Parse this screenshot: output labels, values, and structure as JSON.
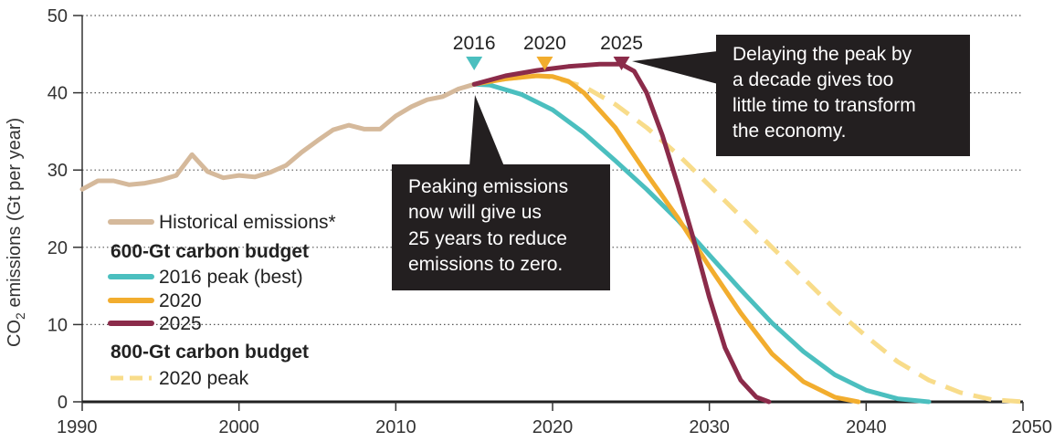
{
  "chart_data": {
    "type": "line",
    "ylabel_prefix": "CO",
    "ylabel_sub": "2",
    "ylabel_suffix": " emissions (Gt per year)",
    "xlim": [
      1990,
      2050
    ],
    "ylim": [
      0,
      50
    ],
    "xticks": [
      1990,
      2000,
      2010,
      2020,
      2030,
      2040,
      2050
    ],
    "yticks": [
      0,
      10,
      20,
      30,
      40,
      50
    ],
    "grid": "horizontal dotted",
    "legend": {
      "placement": "left-bottom",
      "historical": "Historical emissions*",
      "budget600": "600-Gt carbon budget",
      "p2016": "2016 peak (best)",
      "p2020": "2020",
      "p2025": "2025",
      "budget800": "800-Gt carbon budget",
      "p800": "2020 peak"
    },
    "peak_labels": [
      {
        "label": "2016",
        "year": 2015.0,
        "color": "#4bbfbf"
      },
      {
        "label": "2020",
        "year": 2019.5,
        "color": "#f2ad2e"
      },
      {
        "label": "2025",
        "year": 2024.4,
        "color": "#8b2b4a"
      }
    ],
    "annotations": {
      "left": [
        "Peaking emissions",
        "now will give us",
        "25 years to reduce",
        "emissions to zero."
      ],
      "right": [
        "Delaying the peak by",
        "a decade gives too",
        "little time to transform",
        "the economy."
      ]
    },
    "series": [
      {
        "name": "Historical emissions*",
        "color": "#d5b99b",
        "style": "solid",
        "points": [
          [
            1990,
            27.5
          ],
          [
            1991,
            28.6
          ],
          [
            1992,
            28.6
          ],
          [
            1993,
            28.1
          ],
          [
            1994,
            28.3
          ],
          [
            1995,
            28.7
          ],
          [
            1996,
            29.3
          ],
          [
            1997,
            32.0
          ],
          [
            1998,
            29.8
          ],
          [
            1999,
            29.0
          ],
          [
            2000,
            29.3
          ],
          [
            2001,
            29.1
          ],
          [
            2002,
            29.7
          ],
          [
            2003,
            30.6
          ],
          [
            2004,
            32.3
          ],
          [
            2005,
            33.8
          ],
          [
            2006,
            35.2
          ],
          [
            2007,
            35.8
          ],
          [
            2008,
            35.3
          ],
          [
            2009,
            35.3
          ],
          [
            2010,
            37.0
          ],
          [
            2011,
            38.2
          ],
          [
            2012,
            39.1
          ],
          [
            2013,
            39.5
          ],
          [
            2014,
            40.5
          ],
          [
            2015,
            41.1
          ]
        ]
      },
      {
        "name": "2016 peak (best)",
        "color": "#4bbfbf",
        "style": "solid",
        "points": [
          [
            2015,
            41.1
          ],
          [
            2016,
            41.0
          ],
          [
            2018,
            39.8
          ],
          [
            2020,
            37.8
          ],
          [
            2022,
            34.8
          ],
          [
            2024,
            31.2
          ],
          [
            2026,
            27.5
          ],
          [
            2028,
            23.5
          ],
          [
            2030,
            19.0
          ],
          [
            2032,
            14.5
          ],
          [
            2034,
            10.2
          ],
          [
            2036,
            6.5
          ],
          [
            2038,
            3.5
          ],
          [
            2040,
            1.5
          ],
          [
            2042,
            0.4
          ],
          [
            2044,
            0.0
          ]
        ]
      },
      {
        "name": "2020",
        "color": "#f2ad2e",
        "style": "solid",
        "points": [
          [
            2015,
            41.1
          ],
          [
            2017,
            41.8
          ],
          [
            2019,
            42.2
          ],
          [
            2020,
            42.1
          ],
          [
            2021,
            41.5
          ],
          [
            2022,
            40.0
          ],
          [
            2024,
            35.5
          ],
          [
            2026,
            29.5
          ],
          [
            2028,
            23.8
          ],
          [
            2030,
            17.5
          ],
          [
            2032,
            11.5
          ],
          [
            2034,
            6.2
          ],
          [
            2036,
            2.6
          ],
          [
            2038,
            0.6
          ],
          [
            2039.5,
            0.0
          ]
        ]
      },
      {
        "name": "2025",
        "color": "#8b2b4a",
        "style": "solid",
        "points": [
          [
            2015,
            41.1
          ],
          [
            2017,
            42.2
          ],
          [
            2019,
            42.9
          ],
          [
            2021,
            43.4
          ],
          [
            2023,
            43.7
          ],
          [
            2024.4,
            43.7
          ],
          [
            2025.2,
            42.8
          ],
          [
            2026,
            40.0
          ],
          [
            2027,
            34.5
          ],
          [
            2028,
            28.0
          ],
          [
            2029,
            21.0
          ],
          [
            2030,
            13.5
          ],
          [
            2031,
            7.0
          ],
          [
            2032,
            2.8
          ],
          [
            2033,
            0.6
          ],
          [
            2033.8,
            0.0
          ]
        ]
      },
      {
        "name": "2020 peak",
        "color": "#f8dc8a",
        "style": "dashed",
        "points": [
          [
            2015,
            41.1
          ],
          [
            2017,
            41.8
          ],
          [
            2019,
            42.2
          ],
          [
            2020,
            42.0
          ],
          [
            2022,
            40.8
          ],
          [
            2024,
            38.5
          ],
          [
            2026,
            35.5
          ],
          [
            2028,
            32.0
          ],
          [
            2030,
            28.0
          ],
          [
            2032,
            24.0
          ],
          [
            2034,
            20.0
          ],
          [
            2036,
            16.0
          ],
          [
            2038,
            12.0
          ],
          [
            2040,
            8.5
          ],
          [
            2042,
            5.2
          ],
          [
            2044,
            2.8
          ],
          [
            2046,
            1.2
          ],
          [
            2048,
            0.3
          ],
          [
            2050,
            0.0
          ]
        ]
      }
    ]
  }
}
